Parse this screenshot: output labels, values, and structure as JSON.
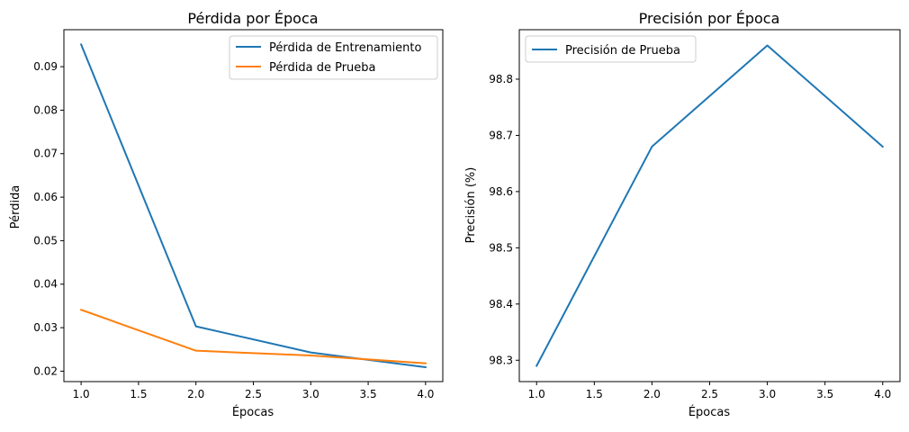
{
  "chart_data": [
    {
      "type": "line",
      "title": "Pérdida por Época",
      "xlabel": "Épocas",
      "ylabel": "Pérdida",
      "xlim": [
        0.85,
        4.15
      ],
      "ylim": [
        0.0176,
        0.0985
      ],
      "xticks": [
        1.0,
        1.5,
        2.0,
        2.5,
        3.0,
        3.5,
        4.0
      ],
      "xtick_labels": [
        "1.0",
        "1.5",
        "2.0",
        "2.5",
        "3.0",
        "3.5",
        "4.0"
      ],
      "yticks": [
        0.02,
        0.03,
        0.04,
        0.05,
        0.06,
        0.07,
        0.08,
        0.09
      ],
      "ytick_labels": [
        "0.02",
        "0.03",
        "0.04",
        "0.05",
        "0.06",
        "0.07",
        "0.08",
        "0.09"
      ],
      "legend_position": "top-right",
      "x": [
        1,
        2,
        3,
        4
      ],
      "series": [
        {
          "name": "Pérdida de Entrenamiento",
          "color": "#1f77b4",
          "values": [
            0.0951,
            0.0303,
            0.0243,
            0.0209
          ]
        },
        {
          "name": "Pérdida de Prueba",
          "color": "#ff7f0e",
          "values": [
            0.0341,
            0.0247,
            0.0236,
            0.0218
          ]
        }
      ]
    },
    {
      "type": "line",
      "title": "Precisión por Época",
      "xlabel": "Épocas",
      "ylabel": "Precisión (%)",
      "xlim": [
        0.85,
        4.15
      ],
      "ylim": [
        98.262,
        98.888
      ],
      "xticks": [
        1.0,
        1.5,
        2.0,
        2.5,
        3.0,
        3.5,
        4.0
      ],
      "xtick_labels": [
        "1.0",
        "1.5",
        "2.0",
        "2.5",
        "3.0",
        "3.5",
        "4.0"
      ],
      "yticks": [
        98.3,
        98.4,
        98.5,
        98.6,
        98.7,
        98.8
      ],
      "ytick_labels": [
        "98.3",
        "98.4",
        "98.5",
        "98.6",
        "98.7",
        "98.8"
      ],
      "legend_position": "top-left",
      "x": [
        1,
        2,
        3,
        4
      ],
      "series": [
        {
          "name": "Precisión de Prueba",
          "color": "#1f77b4",
          "values": [
            98.29,
            98.68,
            98.86,
            98.68
          ]
        }
      ]
    }
  ]
}
